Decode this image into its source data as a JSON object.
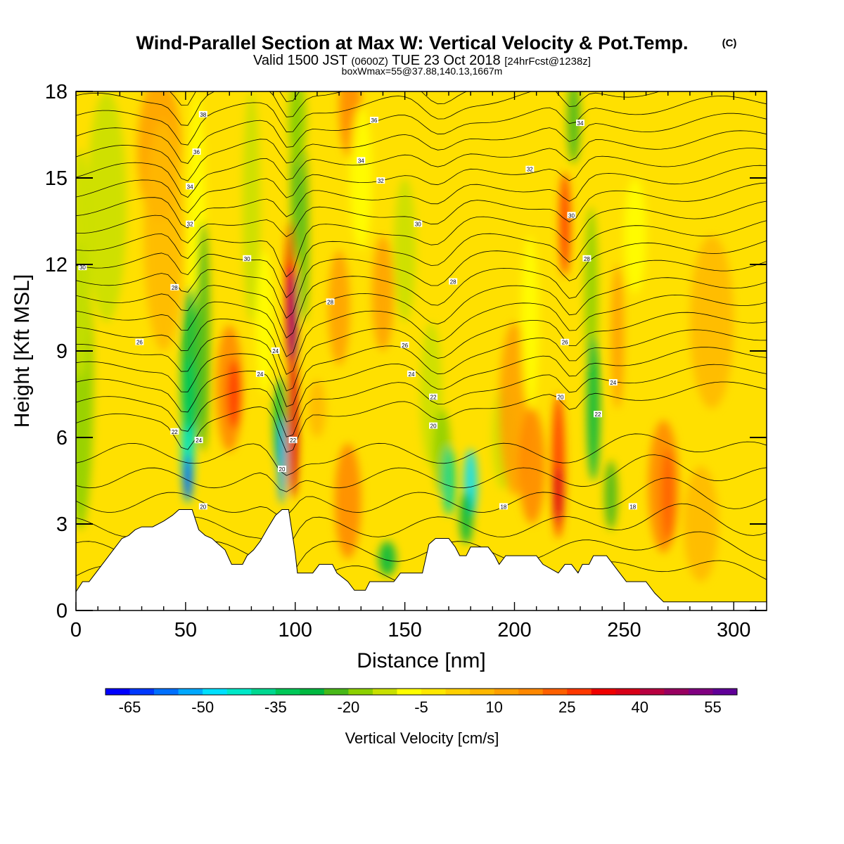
{
  "title": "Wind-Parallel Section at Max W: Vertical Velocity & Pot.Temp.",
  "title_mark": "(C)",
  "subtitle_valid": "Valid 1500 JST",
  "subtitle_utc": "(0600Z)",
  "subtitle_date": "TUE 23 Oct 2018",
  "subtitle_fcst": "[24hrFcst@1238z]",
  "box_info": "boxWmax=55@37.88,140.13,1667m",
  "chart_data": {
    "type": "heatmap",
    "xlabel": "Distance [nm]",
    "ylabel": "Height [Kft MSL]",
    "xlim": [
      0,
      315
    ],
    "ylim": [
      0,
      18
    ],
    "x_ticks": [
      "0",
      "50",
      "100",
      "150",
      "200",
      "250",
      "300"
    ],
    "y_ticks": [
      "0",
      "3",
      "6",
      "9",
      "12",
      "15",
      "18"
    ],
    "colorbar_label": "Vertical Velocity [cm/s]",
    "colorbar_ticks": [
      "-65",
      "-50",
      "-35",
      "-20",
      "-5",
      "10",
      "25",
      "40",
      "55"
    ],
    "colorbar_min": -70,
    "colorbar_max": 60,
    "colorbar_step": 5,
    "colorbar_colors": [
      "#0000ff",
      "#0038ff",
      "#0070ff",
      "#00a8ff",
      "#00e0ff",
      "#00e8c8",
      "#00d890",
      "#00c858",
      "#00b840",
      "#48b818",
      "#8cd000",
      "#c8e000",
      "#ffff00",
      "#ffe800",
      "#ffd000",
      "#ffb800",
      "#ffa000",
      "#ff8800",
      "#ff6000",
      "#ff3800",
      "#f00000",
      "#d80018",
      "#b80040",
      "#980060",
      "#800080",
      "#600098"
    ],
    "terrain": [
      [
        0,
        0.65
      ],
      [
        3,
        1.0
      ],
      [
        6,
        1.0
      ],
      [
        9,
        1.3
      ],
      [
        12,
        1.6
      ],
      [
        15,
        1.9
      ],
      [
        18,
        2.2
      ],
      [
        21,
        2.5
      ],
      [
        24,
        2.6
      ],
      [
        27,
        2.8
      ],
      [
        30,
        2.9
      ],
      [
        35,
        2.9
      ],
      [
        40,
        3.1
      ],
      [
        44,
        3.3
      ],
      [
        47,
        3.5
      ],
      [
        53,
        3.5
      ],
      [
        56,
        2.8
      ],
      [
        59,
        2.6
      ],
      [
        62,
        2.5
      ],
      [
        65,
        2.3
      ],
      [
        68,
        2.1
      ],
      [
        71,
        1.6
      ],
      [
        76,
        1.6
      ],
      [
        78,
        1.9
      ],
      [
        81,
        2.1
      ],
      [
        84,
        2.4
      ],
      [
        87,
        2.8
      ],
      [
        91,
        3.3
      ],
      [
        94,
        3.5
      ],
      [
        97,
        3.5
      ],
      [
        100,
        2.0
      ],
      [
        101,
        1.3
      ],
      [
        108,
        1.3
      ],
      [
        111,
        1.6
      ],
      [
        117,
        1.6
      ],
      [
        119,
        1.3
      ],
      [
        124,
        1.0
      ],
      [
        127,
        0.7
      ],
      [
        132,
        0.7
      ],
      [
        134,
        1.0
      ],
      [
        145,
        1.0
      ],
      [
        148,
        1.3
      ],
      [
        158,
        1.3
      ],
      [
        161,
        2.3
      ],
      [
        164,
        2.5
      ],
      [
        170,
        2.5
      ],
      [
        173,
        2.2
      ],
      [
        175,
        1.9
      ],
      [
        178,
        1.9
      ],
      [
        180,
        2.2
      ],
      [
        188,
        2.2
      ],
      [
        191,
        1.9
      ],
      [
        193,
        1.6
      ],
      [
        196,
        1.9
      ],
      [
        210,
        1.9
      ],
      [
        213,
        1.6
      ],
      [
        220,
        1.3
      ],
      [
        223,
        1.6
      ],
      [
        226,
        1.6
      ],
      [
        229,
        1.3
      ],
      [
        231,
        1.6
      ],
      [
        234,
        1.6
      ],
      [
        236,
        1.9
      ],
      [
        242,
        1.9
      ],
      [
        245,
        1.6
      ],
      [
        248,
        1.3
      ],
      [
        251,
        1.0
      ],
      [
        260,
        1.0
      ],
      [
        264,
        0.6
      ],
      [
        268,
        0.3
      ],
      [
        275,
        0.3
      ],
      [
        315,
        0.3
      ]
    ],
    "contour_labels": [
      {
        "text": "38",
        "x": 58,
        "y": 17.2
      },
      {
        "text": "36",
        "x": 55,
        "y": 15.9
      },
      {
        "text": "34",
        "x": 52,
        "y": 14.7
      },
      {
        "text": "32",
        "x": 52,
        "y": 13.4
      },
      {
        "text": "30",
        "x": 3,
        "y": 11.9
      },
      {
        "text": "28",
        "x": 45,
        "y": 11.2
      },
      {
        "text": "26",
        "x": 29,
        "y": 9.3
      },
      {
        "text": "30",
        "x": 78,
        "y": 12.2
      },
      {
        "text": "24",
        "x": 84,
        "y": 8.2
      },
      {
        "text": "24",
        "x": 91,
        "y": 9.0
      },
      {
        "text": "22",
        "x": 45,
        "y": 6.2
      },
      {
        "text": "24",
        "x": 56,
        "y": 5.9
      },
      {
        "text": "20",
        "x": 58,
        "y": 3.6
      },
      {
        "text": "22",
        "x": 99,
        "y": 5.9
      },
      {
        "text": "20",
        "x": 94,
        "y": 4.9
      },
      {
        "text": "36",
        "x": 136,
        "y": 17.0
      },
      {
        "text": "34",
        "x": 130,
        "y": 15.6
      },
      {
        "text": "32",
        "x": 139,
        "y": 14.9
      },
      {
        "text": "30",
        "x": 156,
        "y": 13.4
      },
      {
        "text": "28",
        "x": 116,
        "y": 10.7
      },
      {
        "text": "28",
        "x": 172,
        "y": 11.4
      },
      {
        "text": "26",
        "x": 150,
        "y": 9.2
      },
      {
        "text": "24",
        "x": 153,
        "y": 8.2
      },
      {
        "text": "22",
        "x": 163,
        "y": 7.4
      },
      {
        "text": "20",
        "x": 163,
        "y": 6.4
      },
      {
        "text": "18",
        "x": 195,
        "y": 3.6
      },
      {
        "text": "32",
        "x": 207,
        "y": 15.3
      },
      {
        "text": "34",
        "x": 230,
        "y": 16.9
      },
      {
        "text": "30",
        "x": 226,
        "y": 13.7
      },
      {
        "text": "28",
        "x": 233,
        "y": 12.2
      },
      {
        "text": "26",
        "x": 223,
        "y": 9.3
      },
      {
        "text": "20",
        "x": 221,
        "y": 7.4
      },
      {
        "text": "22",
        "x": 238,
        "y": 6.8
      },
      {
        "text": "24",
        "x": 245,
        "y": 7.9
      },
      {
        "text": "18",
        "x": 254,
        "y": 3.6
      }
    ]
  }
}
